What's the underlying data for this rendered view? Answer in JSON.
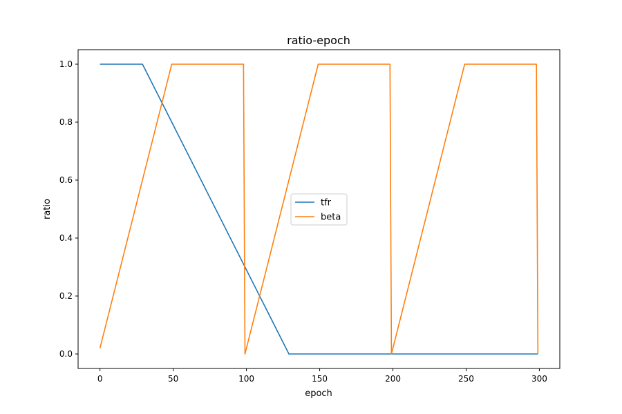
{
  "chart_data": {
    "type": "line",
    "title": "ratio-epoch",
    "xlabel": "epoch",
    "ylabel": "ratio",
    "xlim": [
      -14.95,
      313.95
    ],
    "ylim": [
      -0.05,
      1.05
    ],
    "xticks": [
      0,
      50,
      100,
      150,
      200,
      250,
      300
    ],
    "yticks": [
      0.0,
      0.2,
      0.4,
      0.6,
      0.8,
      1.0
    ],
    "ytick_labels": [
      "0.0",
      "0.2",
      "0.4",
      "0.6",
      "0.8",
      "1.0"
    ],
    "grid": false,
    "legend_placement": "center",
    "series": [
      {
        "name": "tfr",
        "color": "#1f77b4",
        "points": [
          [
            0,
            1.0
          ],
          [
            29,
            1.0
          ],
          [
            129,
            0.0
          ],
          [
            299,
            0.0
          ]
        ]
      },
      {
        "name": "beta",
        "color": "#ff7f0e",
        "points": [
          [
            0,
            0.02
          ],
          [
            49,
            1.0
          ],
          [
            98,
            1.0
          ],
          [
            99,
            0.0
          ],
          [
            149,
            1.0
          ],
          [
            198,
            1.0
          ],
          [
            199,
            0.0
          ],
          [
            249,
            1.0
          ],
          [
            298,
            1.0
          ],
          [
            299,
            0.0
          ]
        ]
      }
    ]
  }
}
